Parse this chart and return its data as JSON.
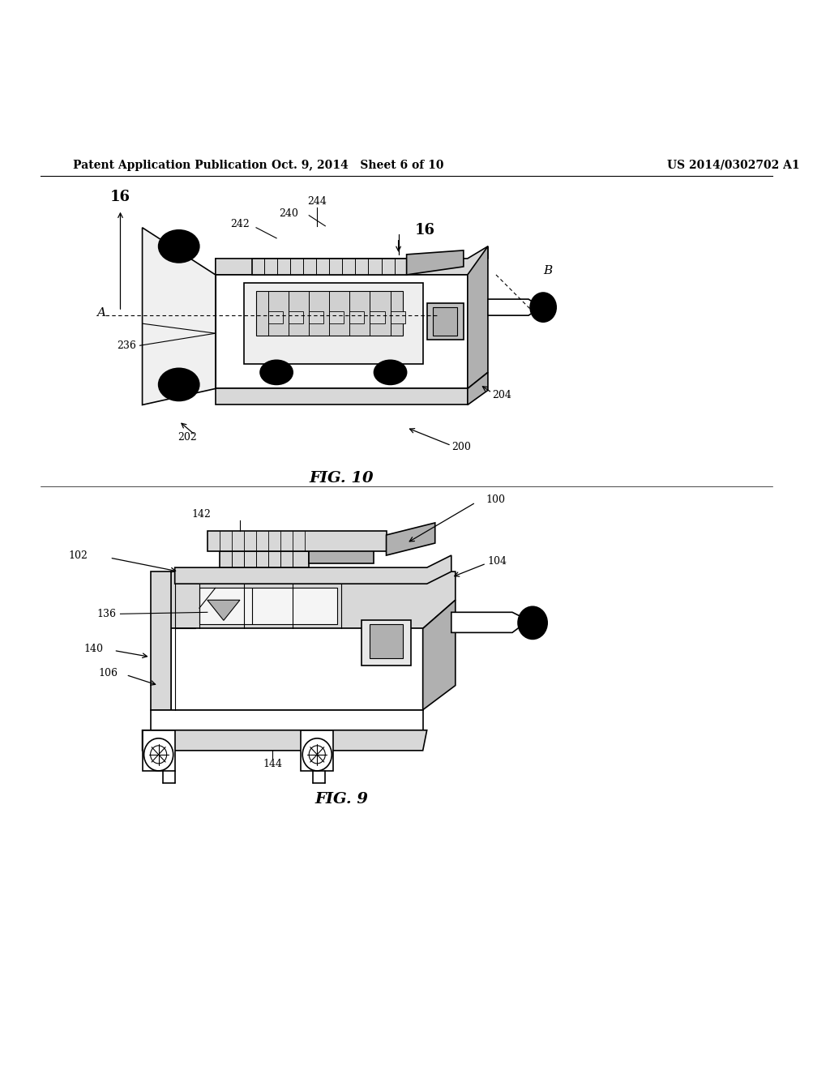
{
  "bg_color": "#ffffff",
  "header_left": "Patent Application Publication",
  "header_mid": "Oct. 9, 2014   Sheet 6 of 10",
  "header_right": "US 2014/0302702 A1",
  "fig9_caption": "FIG. 9",
  "fig10_caption": "FIG. 10",
  "gray_light": "#d8d8d8",
  "gray_mid": "#b0b0b0",
  "white": "#ffffff",
  "black": "#000000"
}
